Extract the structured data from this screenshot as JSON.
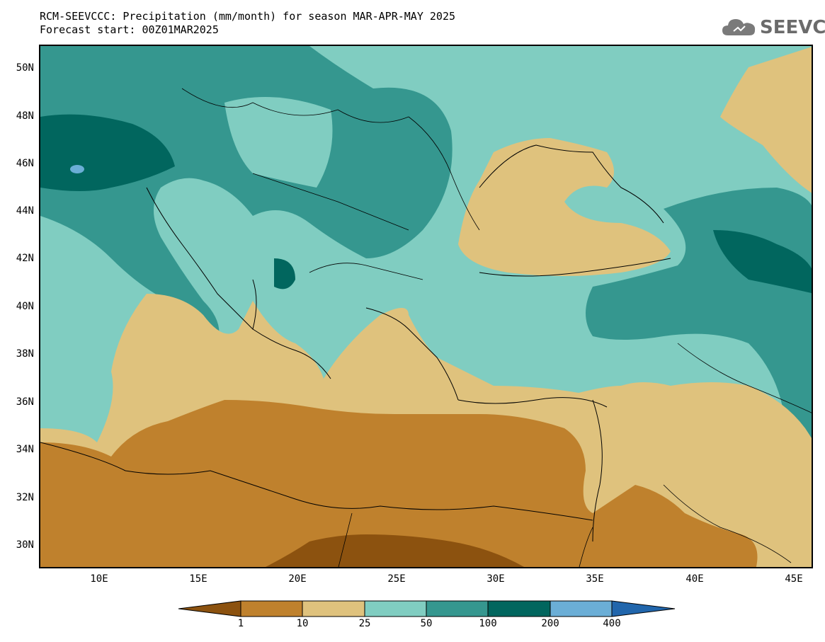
{
  "title": {
    "line1": "RCM-SEEVCCC: Precipitation (mm/month) for season MAR-APR-MAY 2025",
    "line2": "Forecast start: 00Z01MAR2025"
  },
  "logo": {
    "text": "SEEVCCC",
    "icon": "cloud-logo-icon"
  },
  "map": {
    "lat_labels": [
      "50N",
      "48N",
      "46N",
      "44N",
      "42N",
      "40N",
      "38N",
      "36N",
      "34N",
      "32N",
      "30N"
    ],
    "lon_labels": [
      "10E",
      "15E",
      "20E",
      "25E",
      "30E",
      "35E",
      "40E",
      "45E"
    ]
  },
  "legend": {
    "bins": [
      {
        "label": "<1",
        "color": "#8c520f"
      },
      {
        "label": "1-10",
        "color": "#bf812d"
      },
      {
        "label": "10-25",
        "color": "#dfc27d"
      },
      {
        "label": "25-50",
        "color": "#80cdc1"
      },
      {
        "label": "50-100",
        "color": "#35978f"
      },
      {
        "label": "100-200",
        "color": "#01665e"
      },
      {
        "label": "200-400",
        "color": "#6baed6"
      },
      {
        "label": ">400",
        "color": "#2166ac"
      }
    ],
    "tick_labels": [
      "1",
      "10",
      "25",
      "50",
      "100",
      "200",
      "400"
    ]
  }
}
